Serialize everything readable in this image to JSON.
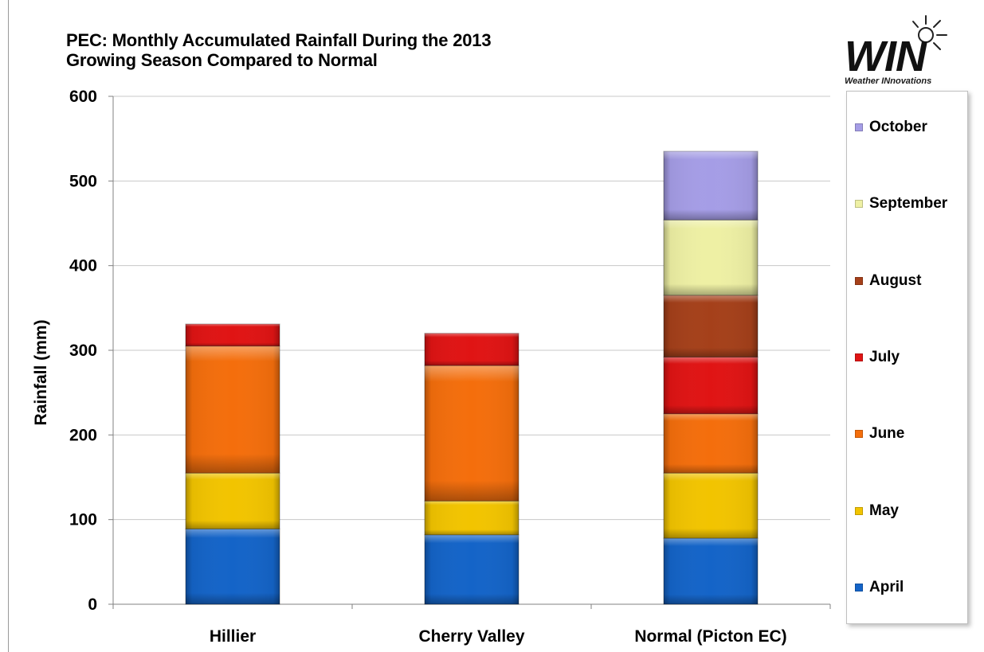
{
  "chart_data": {
    "type": "bar",
    "stacked": true,
    "title": "PEC: Monthly Accumulated Rainfall During the 2013 Growing Season Compared to Normal",
    "title_lines": [
      "PEC: Monthly Accumulated Rainfall During the 2013",
      "Growing Season Compared to Normal"
    ],
    "xlabel": "",
    "ylabel": "Rainfall (mm)",
    "ylim": [
      0,
      600
    ],
    "yticks": [
      0,
      100,
      200,
      300,
      400,
      500,
      600
    ],
    "grid": true,
    "legend_position": "right",
    "categories": [
      "Hillier",
      "Cherry Valley",
      "Normal (Picton EC)"
    ],
    "series": [
      {
        "name": "April",
        "color": "#1464c8",
        "values": [
          89,
          82,
          78
        ]
      },
      {
        "name": "May",
        "color": "#f2c400",
        "values": [
          66,
          40,
          77
        ]
      },
      {
        "name": "June",
        "color": "#f46e0c",
        "values": [
          150,
          160,
          70
        ]
      },
      {
        "name": "July",
        "color": "#e01414",
        "values": [
          26,
          38,
          67
        ]
      },
      {
        "name": "August",
        "color": "#a5401a",
        "values": [
          0,
          0,
          73
        ]
      },
      {
        "name": "September",
        "color": "#eef0a4",
        "values": [
          0,
          0,
          89
        ]
      },
      {
        "name": "October",
        "color": "#a59de6",
        "values": [
          0,
          0,
          81
        ]
      }
    ]
  },
  "logo": {
    "text": "WIN",
    "tagline": "Weather INnovations"
  }
}
